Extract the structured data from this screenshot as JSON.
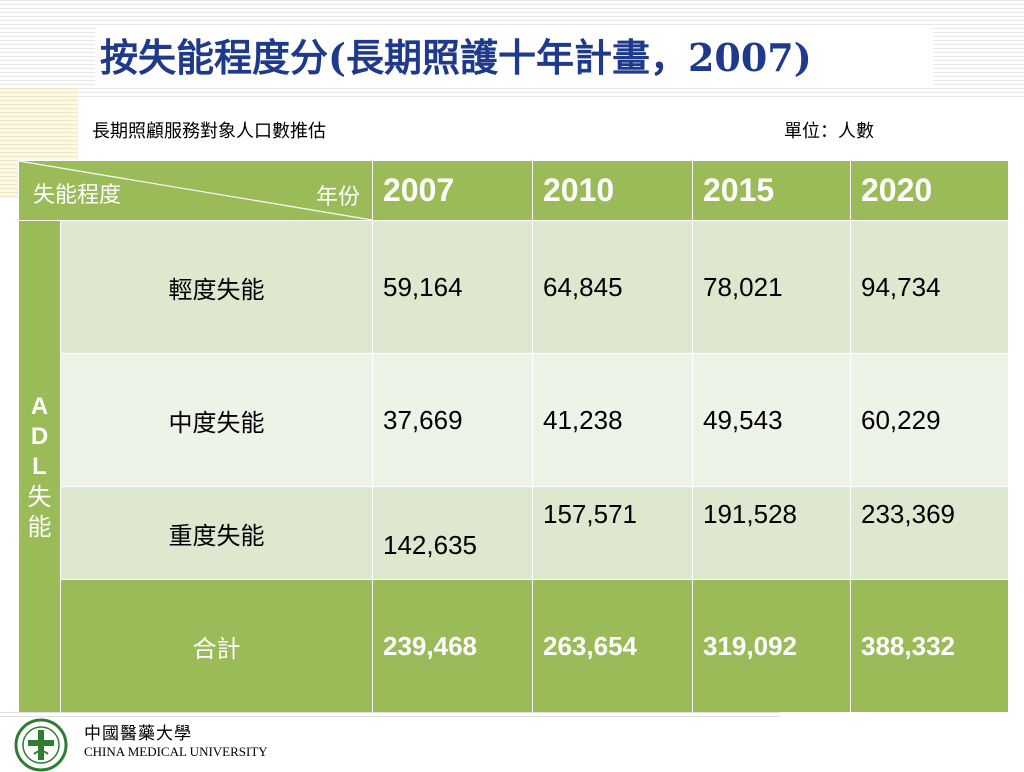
{
  "title": "按失能程度分(長期照護十年計畫，2007)",
  "subtitle": "長期照顧服務對象人口數推估",
  "unit": "單位：人數",
  "table": {
    "corner_left": "失能程度",
    "corner_right": "年份",
    "years": [
      "2007",
      "2010",
      "2015",
      "2020"
    ],
    "side_label": [
      "A",
      "D",
      "L",
      "失",
      "能"
    ],
    "rows": [
      {
        "label": "輕度失能",
        "values": [
          "59,164",
          "64,845",
          "78,021",
          "94,734"
        ]
      },
      {
        "label": "中度失能",
        "values": [
          "37,669",
          "41,238",
          "49,543",
          "60,229"
        ]
      },
      {
        "label": "重度失能",
        "values": [
          "142,635",
          "157,571",
          "191,528",
          "233,369"
        ]
      }
    ],
    "total": {
      "label": "合計",
      "values": [
        "239,468",
        "263,654",
        "319,092",
        "388,332"
      ]
    }
  },
  "footer": {
    "cn": "中國醫藥大學",
    "en": "CHINA MEDICAL UNIVERSITY"
  },
  "colors": {
    "title": "#1f3a8a",
    "header_green": "#9bbb59",
    "row_dark": "#dde8cf",
    "row_light": "#eef3e8"
  }
}
